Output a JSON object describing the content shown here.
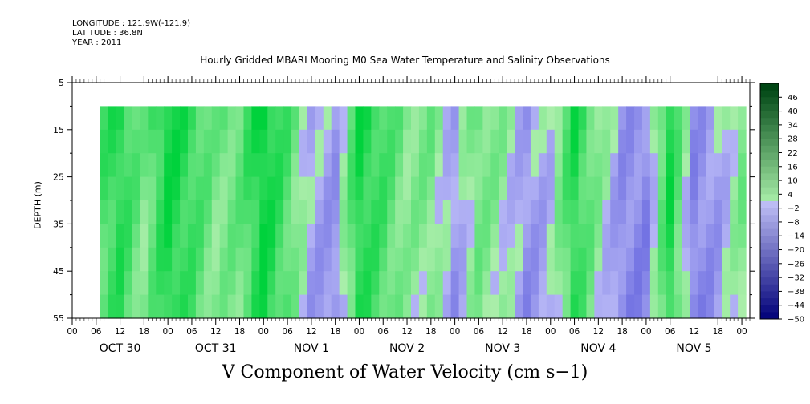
{
  "header": {
    "longitude": "LONGITUDE : 121.9W(-121.9)",
    "latitude": "LATITUDE : 36.8N",
    "year": "YEAR : 2011"
  },
  "chart_data": {
    "type": "heatmap",
    "title": "Hourly Gridded MBARI Mooring M0 Sea Water Temperature and Salinity Observations",
    "xlabel": "V Component of Water Velocity (cm s−1)",
    "ylabel": "DEPTH (m)",
    "y_ticks": [
      5,
      15,
      25,
      35,
      45,
      55
    ],
    "ylim": [
      55,
      5
    ],
    "data_depth_range": [
      10,
      55
    ],
    "x_hour_ticks": [
      "00",
      "06",
      "12",
      "18",
      "00",
      "06",
      "12",
      "18",
      "00",
      "06",
      "12",
      "18",
      "00",
      "06",
      "12",
      "18",
      "00",
      "06",
      "12",
      "18",
      "00",
      "06",
      "12",
      "18",
      "00",
      "06",
      "12",
      "18",
      "00"
    ],
    "x_day_labels": [
      "OCT 30",
      "OCT 31",
      "NOV  1",
      "NOV  2",
      "NOV  3",
      "NOV  4",
      "NOV  5"
    ],
    "data_start_hour": 7,
    "total_hours": 170,
    "colorbar_labels": [
      "46",
      "40",
      "34",
      "28",
      "22",
      "16",
      "10",
      "4",
      "−2",
      "−8",
      "−14",
      "−20",
      "−26",
      "−32",
      "−38",
      "−44",
      "−50"
    ],
    "colorbar_range": [
      -50,
      52
    ],
    "colorbar_step": 3,
    "colors": {
      "positive": "#00cc33",
      "negative": "#6a6ae0"
    },
    "v_profile_by_time": [
      {
        "hour": 7,
        "v": 8
      },
      {
        "hour": 12,
        "v": 12
      },
      {
        "hour": 18,
        "v": 4
      },
      {
        "hour": 24,
        "v": 14
      },
      {
        "hour": 30,
        "v": 10
      },
      {
        "hour": 36,
        "v": 4
      },
      {
        "hour": 42,
        "v": 6
      },
      {
        "hour": 48,
        "v": 15
      },
      {
        "hour": 54,
        "v": 8
      },
      {
        "hour": 60,
        "v": -2
      },
      {
        "hour": 66,
        "v": -4
      },
      {
        "hour": 72,
        "v": 13
      },
      {
        "hour": 78,
        "v": 9
      },
      {
        "hour": 84,
        "v": 3
      },
      {
        "hour": 90,
        "v": 4
      },
      {
        "hour": 96,
        "v": -3
      },
      {
        "hour": 102,
        "v": 5
      },
      {
        "hour": 108,
        "v": 2
      },
      {
        "hour": 114,
        "v": -4
      },
      {
        "hour": 120,
        "v": -1
      },
      {
        "hour": 126,
        "v": 12
      },
      {
        "hour": 132,
        "v": 3
      },
      {
        "hour": 138,
        "v": -5
      },
      {
        "hour": 144,
        "v": -6
      },
      {
        "hour": 150,
        "v": 13
      },
      {
        "hour": 156,
        "v": -6
      },
      {
        "hour": 162,
        "v": -3
      },
      {
        "hour": 168,
        "v": 4
      }
    ]
  }
}
